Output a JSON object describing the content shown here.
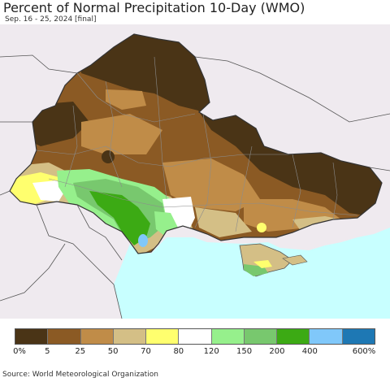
{
  "header": {
    "title": "Percent of Normal Precipitation 10-Day (WMO)",
    "subtitle": "Sep. 16 - 25, 2024 [final]"
  },
  "legend": {
    "bins": [
      {
        "color": "#4a3416"
      },
      {
        "color": "#8b5a24"
      },
      {
        "color": "#c08c48"
      },
      {
        "color": "#d4bf86"
      },
      {
        "color": "#ffff6e"
      },
      {
        "color": "#ffffff"
      },
      {
        "color": "#96f08c"
      },
      {
        "color": "#78c86e"
      },
      {
        "color": "#3caa14"
      },
      {
        "color": "#80c8fa"
      },
      {
        "color": "#1e78b4"
      }
    ],
    "tick_labels": [
      "0%",
      "5",
      "25",
      "50",
      "70",
      "80",
      "120",
      "150",
      "200",
      "400",
      "600%"
    ]
  },
  "map": {
    "colors": {
      "land_outside": "#efeaef",
      "sea": "#c8ffff",
      "border": "#555555",
      "oblast_line": "#8c8c8c"
    }
  },
  "footer": {
    "source": "Source: World Meteorological Organization"
  }
}
